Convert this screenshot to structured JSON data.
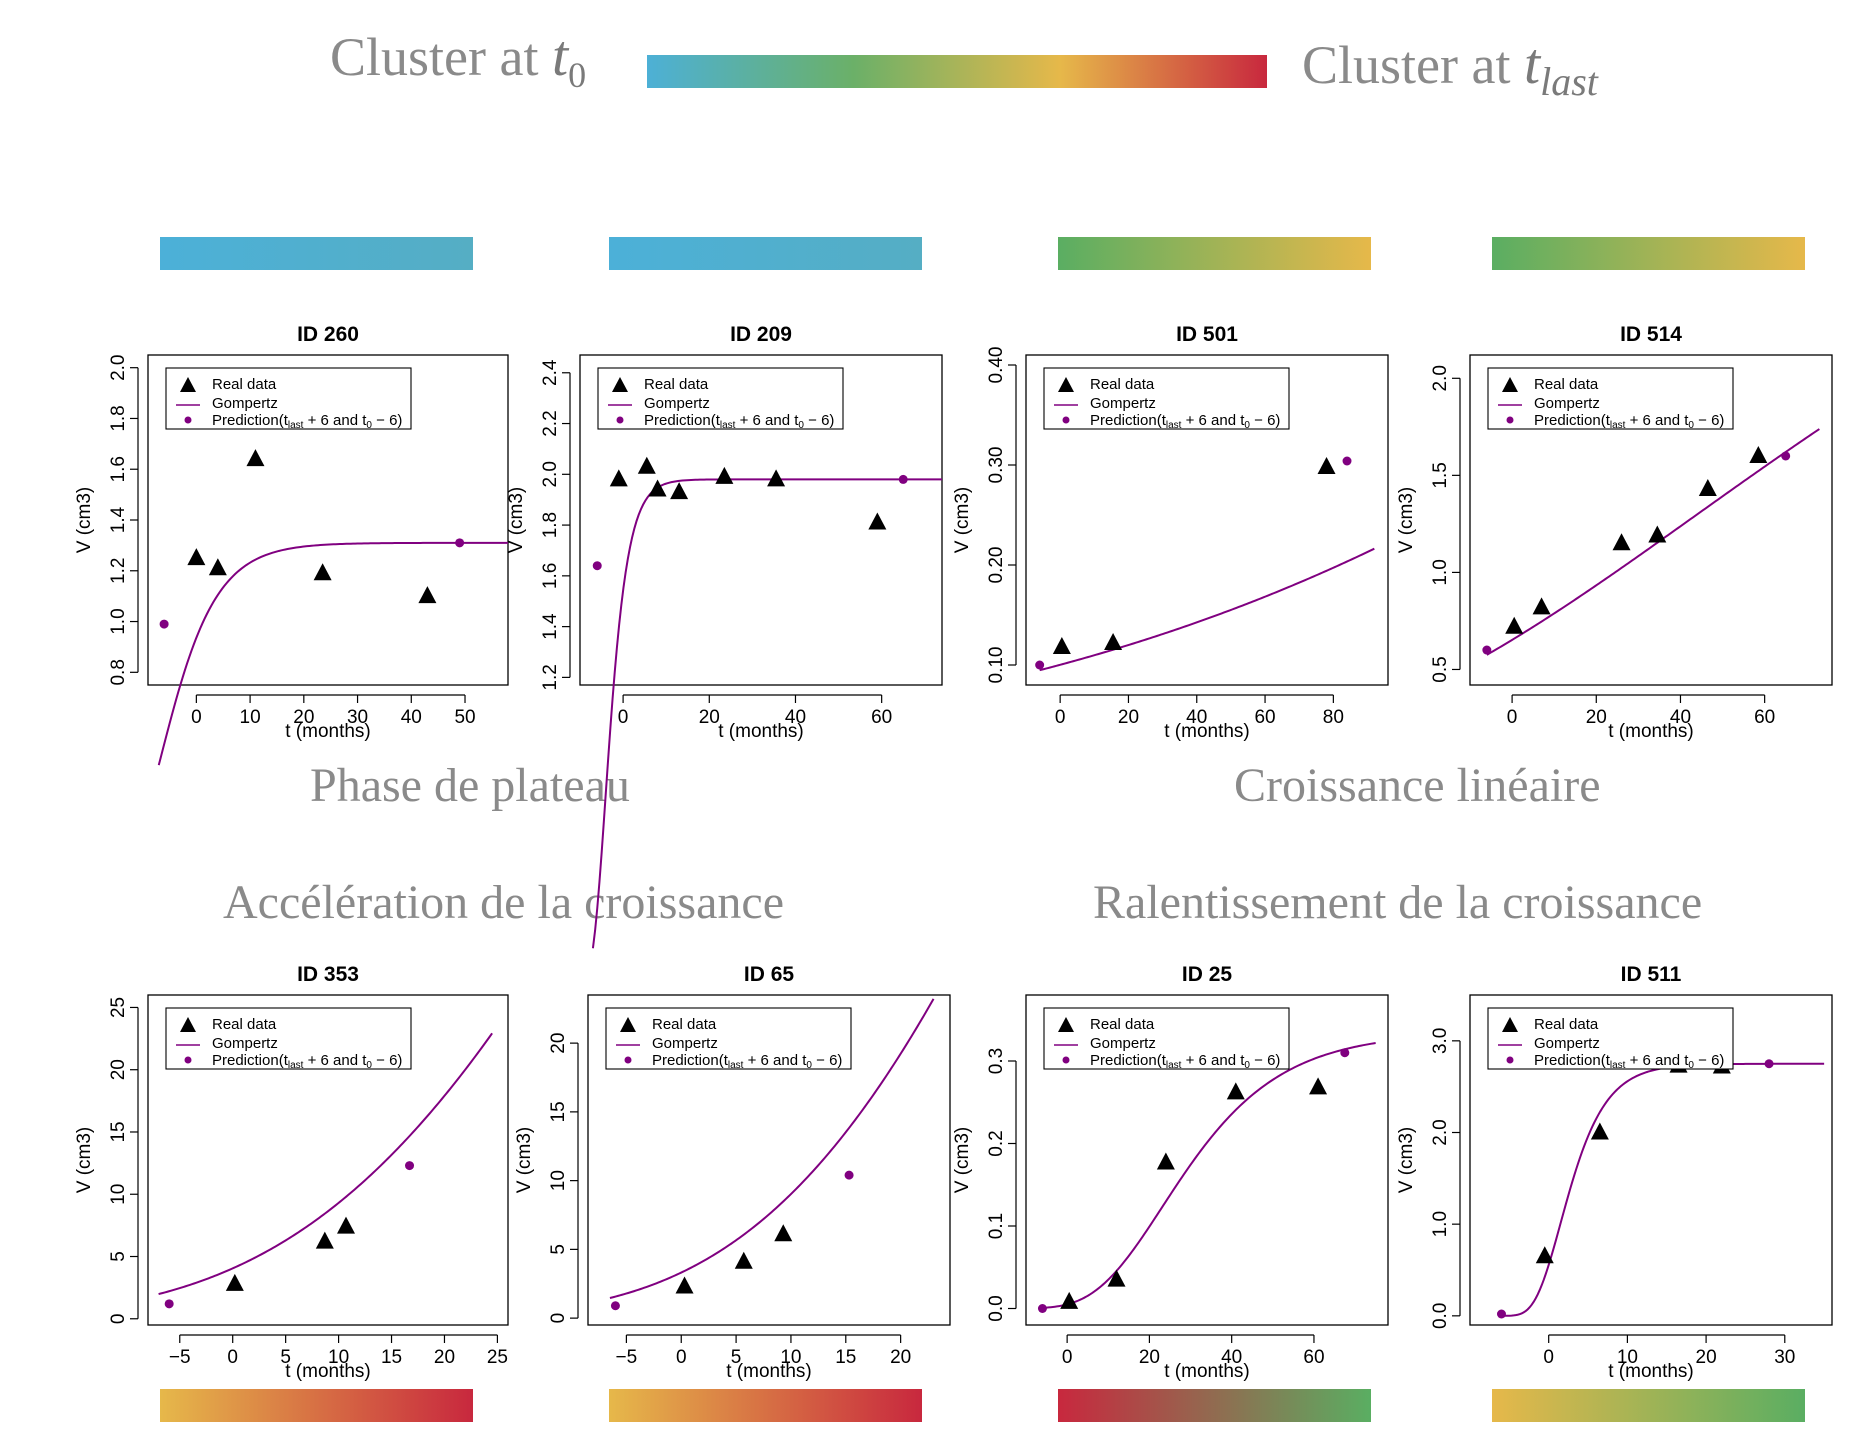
{
  "header": {
    "left_label": "Cluster at ",
    "left_var": "t",
    "left_sub": "0",
    "right_label": "Cluster at ",
    "right_var": "t",
    "right_sub": "last",
    "gradient_colors": [
      "#4db0d6",
      "#6bb068",
      "#e6b84a",
      "#c8283e"
    ]
  },
  "section_titles": {
    "plateau": "Phase de plateau",
    "lineaire": "Croissance linéaire",
    "acceleration": "Accélération de la croissance",
    "ralentissement": "Ralentissement de la croissance"
  },
  "cluster_bars": [
    {
      "colors": [
        "#4cb0d8",
        "#55aec4"
      ]
    },
    {
      "colors": [
        "#4cb0d8",
        "#55aec4"
      ]
    },
    {
      "colors": [
        "#5aae62",
        "#e6b84a"
      ]
    },
    {
      "colors": [
        "#5aae62",
        "#e6b84a"
      ]
    },
    {
      "colors": [
        "#e6b84a",
        "#c8283e"
      ]
    },
    {
      "colors": [
        "#e6b84a",
        "#c8283e"
      ]
    },
    {
      "colors": [
        "#c8283e",
        "#5aae62"
      ]
    },
    {
      "colors": [
        "#e6b84a",
        "#5aae62"
      ]
    }
  ],
  "legend": {
    "real": "Real data",
    "gompertz": "Gompertz",
    "prediction": "Prediction(t",
    "prediction_sub1": "last",
    "prediction_mid": " + 6 and t",
    "prediction_sub2": "0",
    "prediction_end": " − 6)"
  },
  "colors": {
    "model": "#800080",
    "data": "#000000"
  },
  "chart_data": [
    {
      "type": "scatter",
      "title": "ID 260",
      "xlabel": "t (months)",
      "ylabel": "V (cm3)",
      "xlim": [
        -9,
        58
      ],
      "ylim": [
        0.75,
        2.05
      ],
      "xticks": [
        0,
        10,
        20,
        30,
        40,
        50
      ],
      "yticks": [
        0.8,
        1.0,
        1.2,
        1.4,
        1.6,
        1.8,
        2.0
      ],
      "ytick_labels": [
        "0.8",
        "1.0",
        "1.2",
        "1.4",
        "1.6",
        "1.8",
        "2.0"
      ],
      "real_data": [
        [
          0,
          1.25
        ],
        [
          4,
          1.21
        ],
        [
          11,
          1.64
        ],
        [
          23.5,
          1.19
        ],
        [
          43,
          1.1
        ]
      ],
      "predictions": [
        [
          -6,
          0.99
        ],
        [
          49,
          1.31
        ]
      ],
      "gompertz": {
        "a": 1.31,
        "b": 0.336,
        "c": 0.17,
        "t_start": -7,
        "t_end": 58
      }
    },
    {
      "type": "scatter",
      "title": "ID 209",
      "xlabel": "t (months)",
      "ylabel": "V (cm3)",
      "xlim": [
        -10,
        74
      ],
      "ylim": [
        1.17,
        2.47
      ],
      "xticks": [
        0,
        20,
        40,
        60
      ],
      "yticks": [
        1.2,
        1.4,
        1.6,
        1.8,
        2.0,
        2.2,
        2.4
      ],
      "ytick_labels": [
        "1.2",
        "1.4",
        "1.6",
        "1.8",
        "2.0",
        "2.2",
        "2.4"
      ],
      "real_data": [
        [
          -1,
          1.98
        ],
        [
          5.5,
          2.03
        ],
        [
          8,
          1.94
        ],
        [
          13,
          1.93
        ],
        [
          23.5,
          1.99
        ],
        [
          35.5,
          1.98
        ],
        [
          59,
          1.81
        ]
      ],
      "predictions": [
        [
          -6,
          1.64
        ],
        [
          65,
          1.98
        ]
      ],
      "gompertz": {
        "a": 1.98,
        "b": 0.25,
        "c": 0.34,
        "t_start": -7,
        "t_end": 74
      }
    },
    {
      "type": "scatter",
      "title": "ID 501",
      "xlabel": "t (months)",
      "ylabel": "V (cm3)",
      "xlim": [
        -10,
        96
      ],
      "ylim": [
        0.08,
        0.41
      ],
      "xticks": [
        0,
        20,
        40,
        60,
        80
      ],
      "yticks": [
        0.1,
        0.2,
        0.3,
        0.4
      ],
      "ytick_labels": [
        "0.10",
        "0.20",
        "0.30",
        "0.40"
      ],
      "real_data": [
        [
          0.5,
          0.118
        ],
        [
          15.5,
          0.122
        ],
        [
          78,
          0.298
        ]
      ],
      "predictions": [
        [
          -6,
          0.1
        ],
        [
          84,
          0.304
        ]
      ],
      "gompertz": {
        "a": 8.0,
        "b": 4.38,
        "c": 0.0021,
        "t_start": -6,
        "t_end": 92
      }
    },
    {
      "type": "scatter",
      "title": "ID 514",
      "xlabel": "t (months)",
      "ylabel": "V (cm3)",
      "xlim": [
        -10,
        76
      ],
      "ylim": [
        0.42,
        2.12
      ],
      "xticks": [
        0,
        20,
        40,
        60
      ],
      "yticks": [
        0.5,
        1.0,
        1.5,
        2.0
      ],
      "ytick_labels": [
        "0.5",
        "1.0",
        "1.5",
        "2.0"
      ],
      "real_data": [
        [
          0.5,
          0.72
        ],
        [
          7,
          0.82
        ],
        [
          26,
          1.15
        ],
        [
          34.5,
          1.19
        ],
        [
          46.5,
          1.43
        ],
        [
          58.5,
          1.6
        ]
      ],
      "predictions": [
        [
          -6,
          0.6
        ],
        [
          65,
          1.6
        ]
      ],
      "gompertz": {
        "a": 3.5,
        "b": 1.68,
        "c": 0.012,
        "t_start": -6,
        "t_end": 73
      }
    },
    {
      "type": "scatter",
      "title": "ID 353",
      "xlabel": "t (months)",
      "ylabel": "V (cm3)",
      "xlim": [
        -8,
        26
      ],
      "ylim": [
        -0.5,
        26
      ],
      "xticks": [
        -5,
        0,
        5,
        10,
        15,
        20,
        25
      ],
      "yticks": [
        0,
        5,
        10,
        15,
        20,
        25
      ],
      "ytick_labels": [
        "0",
        "5",
        "10",
        "15",
        "20",
        "25"
      ],
      "real_data": [
        [
          0.2,
          2.8
        ],
        [
          8.7,
          6.2
        ],
        [
          10.7,
          7.4
        ]
      ],
      "predictions": [
        [
          -6,
          1.2
        ],
        [
          16.7,
          12.3
        ]
      ],
      "gompertz": {
        "a": 200,
        "b": 3.9,
        "c": 0.024,
        "t_start": -7,
        "t_end": 24.5
      }
    },
    {
      "type": "scatter",
      "title": "ID 65",
      "xlabel": "t (months)",
      "ylabel": "V (cm3)",
      "xlim": [
        -8.5,
        24.5
      ],
      "ylim": [
        -0.5,
        23.5
      ],
      "xticks": [
        -5,
        0,
        5,
        10,
        15,
        20
      ],
      "yticks": [
        0,
        5,
        10,
        15,
        20
      ],
      "ytick_labels": [
        "0",
        "5",
        "10",
        "15",
        "20"
      ],
      "real_data": [
        [
          0.3,
          2.3
        ],
        [
          5.7,
          4.1
        ],
        [
          9.3,
          6.1
        ]
      ],
      "predictions": [
        [
          -6,
          0.9
        ],
        [
          15.3,
          10.4
        ]
      ],
      "gompertz": {
        "a": 200,
        "b": 4.1,
        "c": 0.028,
        "t_start": -6.5,
        "t_end": 23
      }
    },
    {
      "type": "scatter",
      "title": "ID 25",
      "xlabel": "t (months)",
      "ylabel": "V (cm3)",
      "xlim": [
        -10,
        78
      ],
      "ylim": [
        -0.02,
        0.38
      ],
      "xticks": [
        0,
        20,
        40,
        60
      ],
      "yticks": [
        0,
        0.1,
        0.2,
        0.3
      ],
      "ytick_labels": [
        "0.0",
        "0.1",
        "0.2",
        "0.3"
      ],
      "real_data": [
        [
          0.5,
          0.008
        ],
        [
          12,
          0.035
        ],
        [
          24,
          0.177
        ],
        [
          41,
          0.262
        ],
        [
          61,
          0.268
        ]
      ],
      "predictions": [
        [
          -6,
          0.0
        ],
        [
          67.5,
          0.31
        ]
      ],
      "gompertz": {
        "a": 0.335,
        "b": 4.2,
        "c": 0.062,
        "t_start": -6,
        "t_end": 75
      }
    },
    {
      "type": "scatter",
      "title": "ID 511",
      "xlabel": "t (months)",
      "ylabel": "V (cm3)",
      "xlim": [
        -10,
        36
      ],
      "ylim": [
        -0.1,
        3.5
      ],
      "xticks": [
        0,
        10,
        20,
        30
      ],
      "yticks": [
        0,
        1,
        2,
        3
      ],
      "ytick_labels": [
        "0.0",
        "1.0",
        "2.0",
        "3.0"
      ],
      "real_data": [
        [
          -0.5,
          0.65
        ],
        [
          6.5,
          2.0
        ],
        [
          16.5,
          2.73
        ],
        [
          22,
          2.72
        ]
      ],
      "predictions": [
        [
          -6,
          0.02
        ],
        [
          28,
          2.75
        ]
      ],
      "gompertz": {
        "a": 2.75,
        "b": 1.6,
        "c": 0.31,
        "t_start": -6,
        "t_end": 35
      }
    }
  ]
}
